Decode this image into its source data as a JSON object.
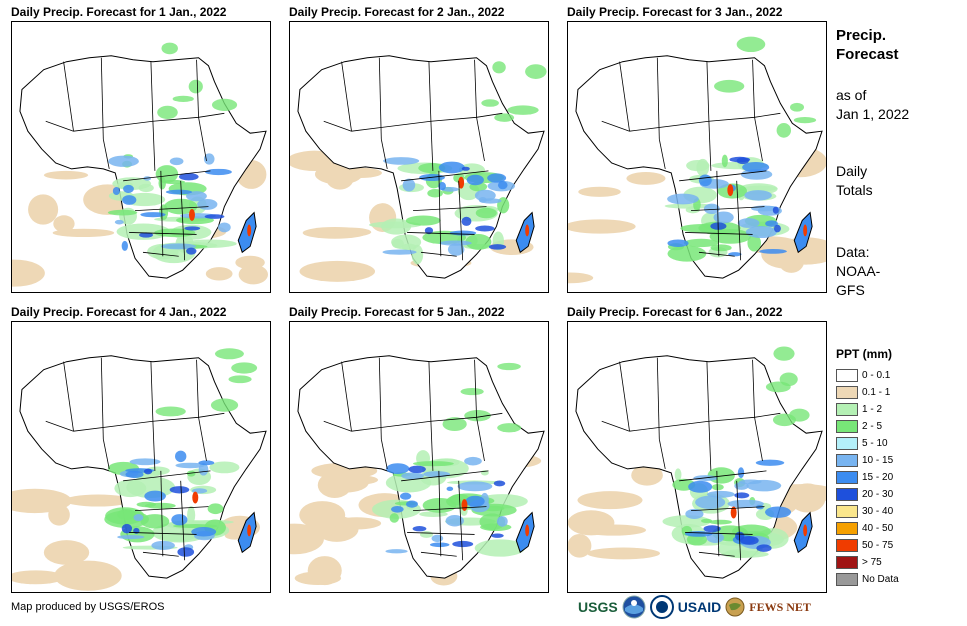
{
  "panels": [
    {
      "title": "Daily Precip. Forecast for 1 Jan., 2022"
    },
    {
      "title": "Daily Precip. Forecast for 2 Jan., 2022"
    },
    {
      "title": "Daily Precip. Forecast for 3 Jan., 2022"
    },
    {
      "title": "Daily Precip. Forecast for 4 Jan., 2022"
    },
    {
      "title": "Daily Precip. Forecast for 5 Jan., 2022"
    },
    {
      "title": "Daily Precip. Forecast for 6 Jan., 2022"
    }
  ],
  "sidebar": {
    "title_line1": "Precip.",
    "title_line2": "Forecast",
    "asof_line1": "as of",
    "asof_line2": "Jan 1, 2022",
    "totals_line1": "Daily",
    "totals_line2": "Totals",
    "data_line1": "Data:",
    "data_line2": "NOAA-",
    "data_line3": "GFS"
  },
  "legend": {
    "title": "PPT (mm)",
    "items": [
      {
        "label": "0 - 0.1",
        "color": "#ffffff"
      },
      {
        "label": "0.1 - 1",
        "color": "#eed8b6"
      },
      {
        "label": "1 - 2",
        "color": "#b4f0b4"
      },
      {
        "label": "2 - 5",
        "color": "#78e678"
      },
      {
        "label": "5 - 10",
        "color": "#b4f0fa"
      },
      {
        "label": "10 - 15",
        "color": "#78b4f0"
      },
      {
        "label": "15 - 20",
        "color": "#3c8cf0"
      },
      {
        "label": "20 - 30",
        "color": "#1e50dc"
      },
      {
        "label": "30 - 40",
        "color": "#fae68c"
      },
      {
        "label": "40 - 50",
        "color": "#f5a000"
      },
      {
        "label": "50 - 75",
        "color": "#f03c00"
      },
      {
        "label": "> 75",
        "color": "#a01414"
      },
      {
        "label": "No Data",
        "color": "#999999"
      }
    ]
  },
  "footer": {
    "credit": "Map produced by USGS/EROS"
  },
  "logos": {
    "usgs": "USGS",
    "usaid": "USAID",
    "fews": "FEWS NET"
  }
}
